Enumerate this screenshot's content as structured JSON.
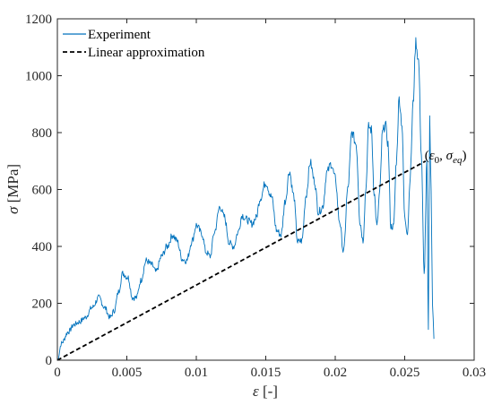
{
  "chart_data": {
    "type": "line",
    "xlabel_symbol": "ε",
    "xlabel_unit": " [-]",
    "ylabel_symbol": "σ",
    "ylabel_unit": " [MPa]",
    "xlim": [
      0,
      0.03
    ],
    "ylim": [
      0,
      1200
    ],
    "x_ticks": [
      0,
      0.005,
      0.01,
      0.015,
      0.02,
      0.025,
      0.03
    ],
    "x_tick_labels": [
      "0",
      "0.005",
      "0.01",
      "0.015",
      "0.02",
      "0.025",
      "0.03"
    ],
    "y_ticks": [
      0,
      200,
      400,
      600,
      800,
      1000,
      1200
    ],
    "y_tick_labels": [
      "0",
      "200",
      "400",
      "600",
      "800",
      "1000",
      "1200"
    ],
    "legend_position": "top-left",
    "grid": false,
    "series": [
      {
        "name": "Experiment",
        "color": "#0072BD",
        "style": "solid",
        "x": [
          0,
          0.0003,
          0.0008,
          0.0012,
          0.0016,
          0.002,
          0.0025,
          0.003,
          0.0034,
          0.0038,
          0.0041,
          0.0044,
          0.0047,
          0.0051,
          0.0054,
          0.0057,
          0.006,
          0.0064,
          0.0068,
          0.0071,
          0.0075,
          0.0079,
          0.0083,
          0.0086,
          0.009,
          0.0093,
          0.0097,
          0.01,
          0.0104,
          0.0107,
          0.011,
          0.0113,
          0.0117,
          0.012,
          0.0124,
          0.0127,
          0.013,
          0.0133,
          0.0136,
          0.014,
          0.0143,
          0.0146,
          0.015,
          0.0154,
          0.0158,
          0.0161,
          0.0164,
          0.0167,
          0.017,
          0.0173,
          0.0176,
          0.0179,
          0.0182,
          0.0185,
          0.0188,
          0.0191,
          0.0194,
          0.0197,
          0.02,
          0.0203,
          0.0206,
          0.0209,
          0.0212,
          0.0215,
          0.0218,
          0.022,
          0.0222,
          0.0224,
          0.0226,
          0.0228,
          0.023,
          0.0232,
          0.0234,
          0.0236,
          0.0238,
          0.024,
          0.0242,
          0.0244,
          0.0246,
          0.0248,
          0.025,
          0.0252,
          0.0254,
          0.0256,
          0.0258,
          0.026,
          0.0262,
          0.0264,
          0.0266,
          0.0267,
          0.0268,
          0.0269,
          0.027,
          0.0271
        ],
        "y": [
          0,
          60,
          100,
          125,
          135,
          150,
          185,
          220,
          185,
          150,
          175,
          240,
          305,
          290,
          220,
          220,
          280,
          350,
          335,
          310,
          365,
          400,
          440,
          420,
          355,
          350,
          420,
          475,
          445,
          380,
          365,
          450,
          540,
          505,
          410,
          400,
          450,
          510,
          495,
          480,
          500,
          570,
          625,
          575,
          455,
          440,
          560,
          665,
          580,
          415,
          420,
          580,
          695,
          630,
          520,
          540,
          660,
          690,
          640,
          490,
          380,
          600,
          800,
          760,
          480,
          420,
          600,
          820,
          810,
          590,
          470,
          590,
          800,
          830,
          760,
          470,
          470,
          700,
          920,
          830,
          500,
          450,
          650,
          900,
          1120,
          1050,
          720,
          300,
          700,
          100,
          850,
          600,
          200,
          75
        ]
      },
      {
        "name": "Linear approximation",
        "color": "#000000",
        "style": "dashed",
        "x": [
          0,
          0.0265
        ],
        "y": [
          0,
          700
        ]
      }
    ],
    "annotations": [
      {
        "text_open": "(",
        "eps": "ε",
        "eps_sub": "0",
        "sep": ", ",
        "sig": "σ",
        "sig_sub": "eq",
        "text_close": ")",
        "x": 0.0265,
        "y": 700
      }
    ]
  }
}
